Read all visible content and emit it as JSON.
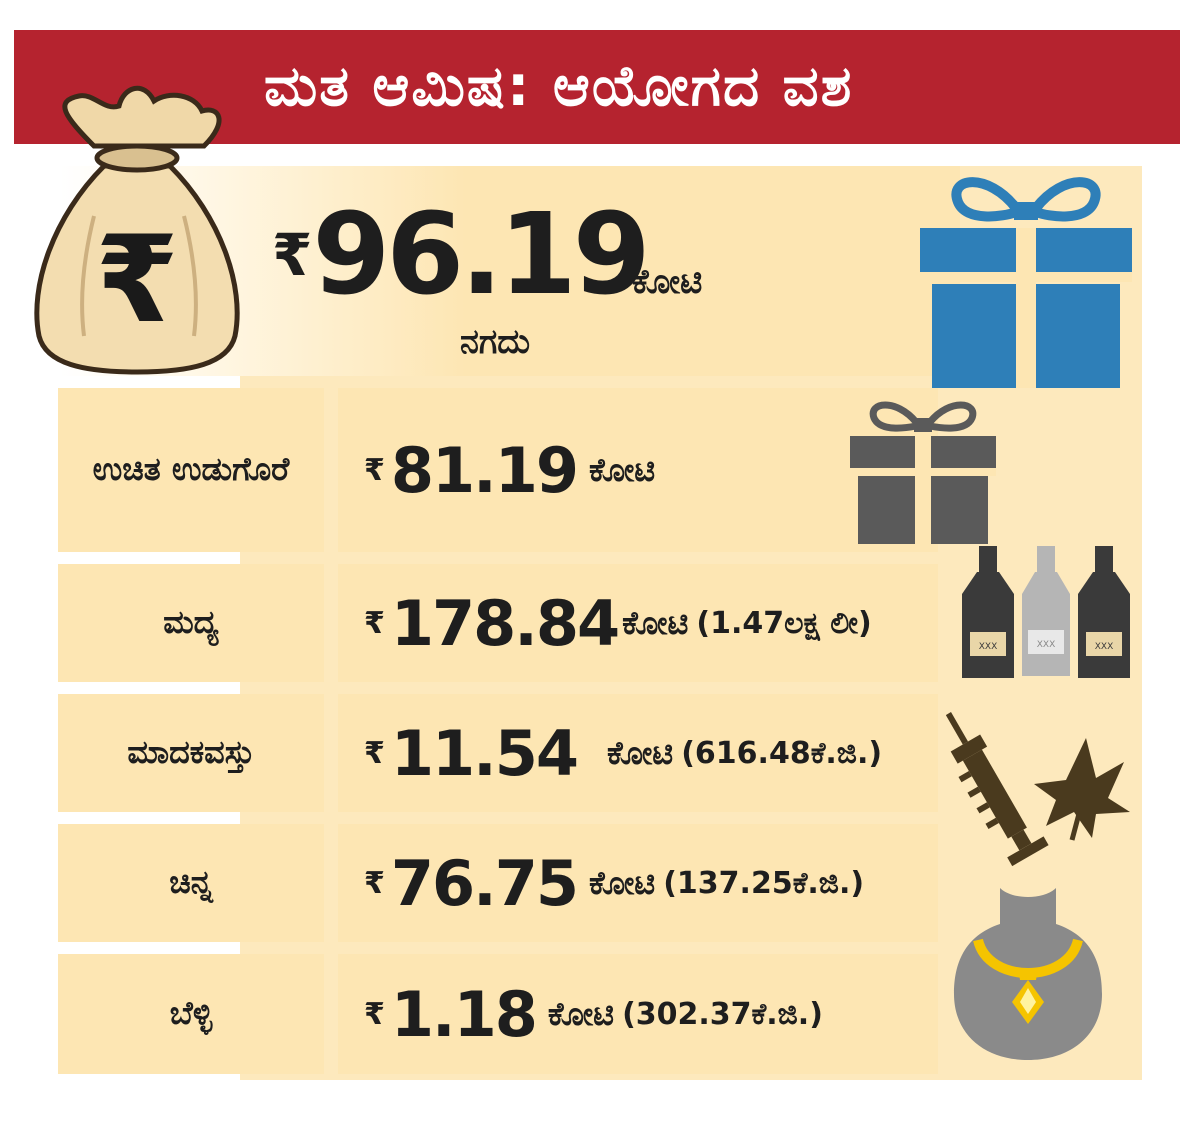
{
  "header": {
    "title": "ಮತ ಆಮಿಷ: ಆಯೋಗದ ವಶ"
  },
  "hero": {
    "currency": "₹",
    "amount": "96.19",
    "unit": "ಕೋಟಿ",
    "label": "ನಗದು"
  },
  "rows": [
    {
      "label": "ಉಚಿತ ಉಡುಗೊರೆ",
      "currency": "₹",
      "amount": "81.19",
      "unit": "ಕೋಟಿ",
      "extra": ""
    },
    {
      "label": "ಮದ್ಯ",
      "currency": "₹",
      "amount": "178.84",
      "unit": "ಕೋಟಿ",
      "extra": "(1.47ಲಕ್ಷ ಲೀ)"
    },
    {
      "label": "ಮಾದಕವಸ್ತು",
      "currency": "₹",
      "amount": "11.54",
      "unit": "ಕೋಟಿ",
      "extra": "(616.48ಕೆ.ಜಿ.)"
    },
    {
      "label": "ಚಿನ್ನ",
      "currency": "₹",
      "amount": "76.75",
      "unit": "ಕೋಟಿ",
      "extra": "(137.25ಕೆ.ಜಿ.)"
    },
    {
      "label": "ಬೆಳ್ಳಿ",
      "currency": "₹",
      "amount": "1.18",
      "unit": "ಕೋಟಿ",
      "extra": "(302.37ಕೆ.ಜಿ.)"
    }
  ],
  "bag_symbol": "₹",
  "bottle_label": "XXX",
  "icons": {
    "money_bag": "money-bag-icon",
    "gift_large": "gift-icon",
    "gift_small": "gift-icon",
    "bottles": "liquor-bottles-icon",
    "drugs": "syringe-leaf-icon",
    "jewelry": "necklace-icon"
  },
  "colors": {
    "banner": "#b5232f",
    "panel": "#fde6b3",
    "gift_blue": "#2e7fb8",
    "gift_gray": "#5a5a5a",
    "drug_brown": "#4a3a1e",
    "gold": "#f5c400"
  }
}
